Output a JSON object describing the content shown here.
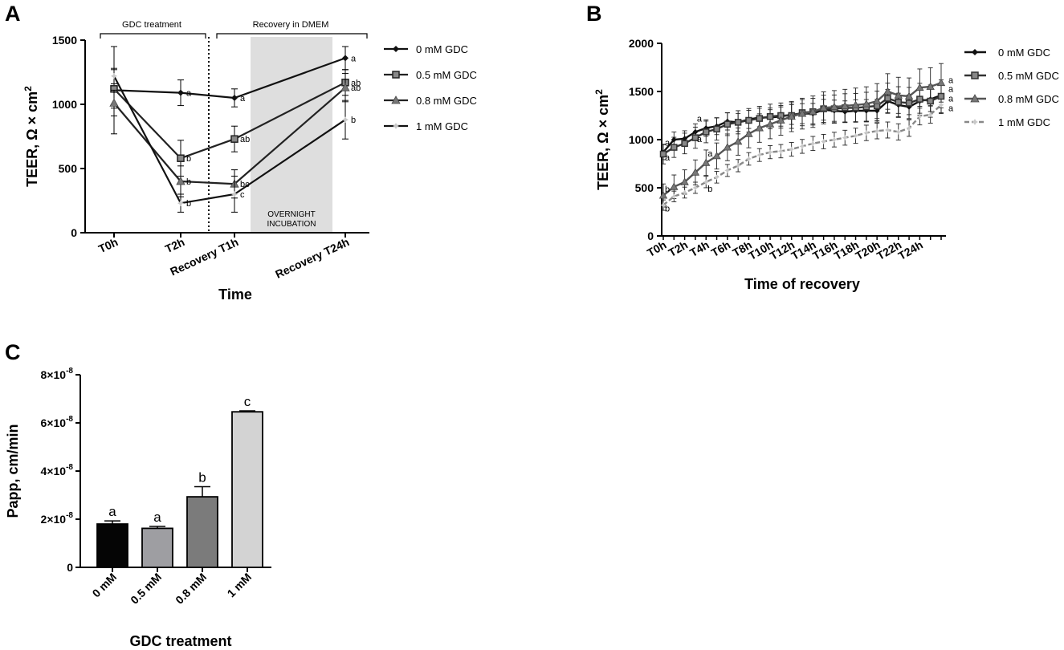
{
  "chart_data": [
    {
      "panel": "A",
      "type": "line",
      "ylabel": "TEER, Ω × cm",
      "ylabel_sup": "2",
      "xlabel": "Time",
      "categories": [
        "T0h",
        "T2h",
        "Recovery T1h",
        "Recovery T24h"
      ],
      "ylim": [
        0,
        1500
      ],
      "yticks": [
        0,
        500,
        1000,
        1500
      ],
      "treatment_label": "GDC treatment",
      "recovery_label": "Recovery in DMEM",
      "shade_label_line1": "OVERNIGHT",
      "shade_label_line2": "INCUBATION",
      "series": [
        {
          "name": "0 mM GDC",
          "marker": "diamond",
          "color": "#111111",
          "dash": "",
          "values": [
            1110,
            1090,
            1050,
            1360
          ],
          "err": [
            340,
            100,
            70,
            90
          ],
          "letters": [
            "",
            "a",
            "a",
            "a"
          ]
        },
        {
          "name": "0.5 mM GDC",
          "marker": "square",
          "color": "#222222",
          "dash": "",
          "values": [
            1120,
            580,
            730,
            1170
          ],
          "err": [
            150,
            140,
            100,
            100
          ],
          "letters": [
            "",
            "b",
            "ab",
            "ab"
          ]
        },
        {
          "name": "0.8 mM GDC",
          "marker": "triangle",
          "color": "#222222",
          "dash": "",
          "values": [
            1010,
            400,
            380,
            1130
          ],
          "err": [
            100,
            120,
            110,
            110
          ],
          "letters": [
            "",
            "b",
            "bc",
            "ab"
          ]
        },
        {
          "name": "1 mM GDC",
          "marker": "star",
          "color": "#111111",
          "dash": "",
          "values": [
            1220,
            230,
            300,
            880
          ],
          "err": [
            60,
            70,
            140,
            150
          ],
          "letters": [
            "",
            "b",
            "c",
            "b"
          ]
        }
      ]
    },
    {
      "panel": "B",
      "type": "line",
      "ylabel": "TEER, Ω × cm",
      "ylabel_sup": "2",
      "xlabel": "Time of recovery",
      "x_labels": [
        "T0h",
        "T2h",
        "T4h",
        "T6h",
        "T8h",
        "T10h",
        "T12h",
        "T14h",
        "T16h",
        "T18h",
        "T20h",
        "T22h",
        "T24h"
      ],
      "ylim": [
        0,
        2000
      ],
      "yticks": [
        0,
        500,
        1000,
        1500,
        2000
      ],
      "series": [
        {
          "name": "0 mM GDC",
          "marker": "diamond",
          "color": "#111111",
          "dash": "",
          "values": [
            870,
            1000,
            1010,
            1080,
            1120,
            1140,
            1190,
            1180,
            1210,
            1230,
            1230,
            1240,
            1260,
            1270,
            1270,
            1310,
            1300,
            1290,
            1300,
            1300,
            1300,
            1400,
            1360,
            1340,
            1400,
            1420,
            1460
          ],
          "err": 130,
          "start_letter": "a",
          "end_letter": "a"
        },
        {
          "name": "0.5 mM GDC",
          "marker": "square",
          "color": "#333333",
          "dash": "",
          "values": [
            850,
            920,
            960,
            1020,
            1080,
            1110,
            1160,
            1180,
            1200,
            1220,
            1240,
            1250,
            1250,
            1280,
            1290,
            1320,
            1320,
            1330,
            1330,
            1340,
            1350,
            1430,
            1390,
            1380,
            1420,
            1400,
            1450
          ],
          "err": 170,
          "start_letter": "a",
          "end_letter": "a"
        },
        {
          "name": "0.8 mM GDC",
          "marker": "triangle",
          "color": "#555555",
          "dash": "",
          "values": [
            420,
            510,
            560,
            660,
            760,
            830,
            920,
            980,
            1060,
            1120,
            1160,
            1200,
            1240,
            1270,
            1290,
            1330,
            1340,
            1350,
            1360,
            1370,
            1400,
            1500,
            1460,
            1450,
            1540,
            1550,
            1590
          ],
          "err": 200,
          "start_letter": "b",
          "end_letter": "a"
        },
        {
          "name": "1 mM GDC",
          "marker": "star",
          "color": "#888888",
          "dash": "6,3",
          "values": [
            320,
            410,
            450,
            500,
            560,
            610,
            680,
            730,
            800,
            840,
            870,
            880,
            900,
            930,
            960,
            980,
            1000,
            1020,
            1040,
            1070,
            1090,
            1100,
            1080,
            1120,
            1240,
            1260,
            1360
          ],
          "err": 90,
          "start_letter": "b",
          "end_letter": "a"
        }
      ],
      "mid_letters": [
        {
          "label": "a",
          "index": 3,
          "value": 1220
        },
        {
          "label": "a",
          "index": 3,
          "value": 1010
        },
        {
          "label": "a",
          "index": 4,
          "value": 860
        },
        {
          "label": "b",
          "index": 4,
          "value": 490
        }
      ]
    },
    {
      "panel": "C",
      "type": "bar",
      "ylabel": "Papp, cm/min",
      "xlabel": "GDC treatment",
      "categories": [
        "0 mM",
        "0.5 mM",
        "0.8 mM",
        "1 mM"
      ],
      "values": [
        1.8e-08,
        1.62e-08,
        2.93e-08,
        6.46e-08
      ],
      "err": [
        1.3e-09,
        8e-10,
        4.2e-09,
        4e-10
      ],
      "letters": [
        "a",
        "a",
        "b",
        "c"
      ],
      "colors": [
        "#050505",
        "#9e9ea2",
        "#7b7b7b",
        "#d3d3d3"
      ],
      "ylim": [
        0,
        8e-08
      ],
      "ytick_mantissas": [
        "0",
        "2×10",
        "4×10",
        "6×10",
        "8×10"
      ],
      "ytick_exponent": "-8",
      "ytick_values": [
        0,
        2e-08,
        4e-08,
        6e-08,
        8e-08
      ]
    }
  ]
}
